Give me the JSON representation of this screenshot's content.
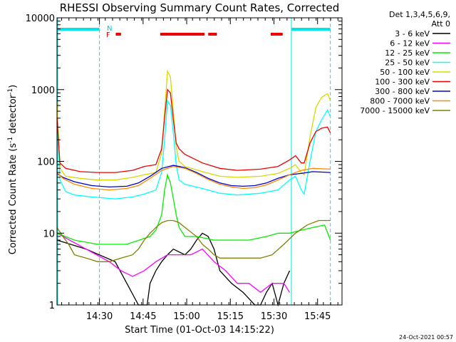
{
  "chart_data": {
    "type": "line",
    "title": "RHESSI Observing Summary Count Rates, Corrected",
    "xlabel": "Start Time (01-Oct-03 14:15:22)",
    "ylabel": "Corrected Count Rate (s",
    "ylabel_sup": "-1",
    "ylabel_mid": " detector",
    "ylabel_end": ")",
    "yscale": "log",
    "ylim": [
      1,
      10000
    ],
    "xlim": [
      0,
      98
    ],
    "ytick_values": [
      1,
      10,
      100,
      1000,
      10000
    ],
    "ytick_labels": [
      "1",
      "10",
      "100",
      "1000",
      "10000"
    ],
    "xtick_values": [
      14.6,
      29.6,
      44.6,
      59.6,
      74.6,
      89.6
    ],
    "xtick_labels": [
      "14:30",
      "14:45",
      "15:00",
      "15:15",
      "15:30",
      "15:45"
    ],
    "legend_header": [
      "Det 1,3,4,5,6,9,",
      "Att 0"
    ],
    "timestamp": "24-Oct-2021 00:57",
    "flag_N_label": "N",
    "flag_F_label": "F",
    "night_intervals": [
      [
        0,
        14.6
      ],
      [
        80.6,
        94.0
      ]
    ],
    "flare_intervals": [
      [
        20.2,
        22.0
      ],
      [
        35.5,
        50.7
      ],
      [
        52.0,
        55.0
      ],
      [
        73.5,
        77.6
      ]
    ],
    "background_color": "#ffffff",
    "series": [
      {
        "name": "3 - 6 keV",
        "color": "#000000",
        "x": [
          0,
          10,
          20,
          24,
          28,
          29,
          30,
          31,
          32,
          34,
          36,
          38,
          40,
          44,
          46,
          48,
          50,
          52,
          54,
          56,
          60,
          64,
          68,
          70,
          72,
          74,
          76,
          78,
          80
        ],
        "y": [
          8,
          6,
          4,
          2,
          1,
          1,
          1,
          1,
          2,
          3,
          4,
          5,
          6,
          5,
          6,
          8,
          10,
          9,
          6,
          3,
          2,
          1.5,
          1,
          1,
          1.5,
          2,
          1,
          2,
          3
        ]
      },
      {
        "name": "6 - 12 keV",
        "color": "#ff00ff",
        "x": [
          0,
          10,
          18,
          22,
          26,
          30,
          34,
          38,
          42,
          46,
          50,
          54,
          58,
          62,
          66,
          70,
          74,
          78,
          80
        ],
        "y": [
          10,
          6,
          4,
          3,
          2.5,
          3,
          4,
          5,
          5,
          5,
          6,
          4,
          3,
          2,
          2,
          1.5,
          2,
          2,
          1.5
        ]
      },
      {
        "name": "12 - 25 keV",
        "color": "#00ee00",
        "x": [
          0,
          6,
          14,
          24,
          32,
          34,
          36,
          37,
          38,
          39,
          40,
          41,
          42,
          44,
          48,
          54,
          60,
          66,
          72,
          76,
          80,
          84,
          88,
          92,
          94
        ],
        "y": [
          10,
          8,
          7,
          7,
          9,
          11,
          18,
          40,
          65,
          50,
          30,
          18,
          12,
          9,
          9,
          8,
          8,
          8,
          9,
          10,
          10,
          11,
          12,
          13,
          8
        ]
      },
      {
        "name": "25 - 50 keV",
        "color": "#00ffff",
        "x": [
          0,
          1,
          3,
          6,
          12,
          20,
          26,
          30,
          34,
          36,
          37,
          38,
          39,
          40,
          41,
          42,
          44,
          50,
          56,
          62,
          70,
          76,
          80,
          82,
          84,
          85,
          87,
          89,
          91,
          93,
          94
        ],
        "y": [
          600,
          55,
          38,
          34,
          32,
          30,
          32,
          35,
          40,
          70,
          200,
          700,
          600,
          250,
          90,
          55,
          48,
          42,
          36,
          34,
          36,
          40,
          55,
          62,
          40,
          35,
          100,
          260,
          380,
          520,
          420
        ]
      },
      {
        "name": "50 - 100 keV",
        "color": "#d8d800",
        "x": [
          0,
          1,
          3,
          8,
          14,
          20,
          26,
          30,
          34,
          36,
          37,
          38,
          39,
          40,
          41,
          42,
          44,
          50,
          56,
          62,
          70,
          76,
          80,
          82,
          84,
          85,
          87,
          89,
          91,
          93,
          94
        ],
        "y": [
          700,
          80,
          62,
          58,
          55,
          55,
          60,
          65,
          70,
          130,
          500,
          1800,
          1500,
          500,
          160,
          100,
          85,
          72,
          62,
          60,
          62,
          68,
          80,
          90,
          70,
          65,
          220,
          560,
          780,
          880,
          700
        ]
      },
      {
        "name": "100 - 300 keV",
        "color": "#ee0000",
        "x": [
          0,
          1,
          3,
          8,
          14,
          20,
          26,
          30,
          34,
          36,
          37,
          38,
          39,
          40,
          41,
          42,
          44,
          50,
          56,
          62,
          70,
          76,
          80,
          82,
          84,
          85,
          87,
          89,
          91,
          93,
          94
        ],
        "y": [
          400,
          95,
          80,
          72,
          70,
          70,
          75,
          85,
          90,
          150,
          400,
          1000,
          900,
          380,
          180,
          150,
          125,
          95,
          80,
          75,
          78,
          85,
          105,
          120,
          95,
          95,
          180,
          260,
          290,
          300,
          250
        ]
      },
      {
        "name": "300 - 800 keV",
        "color": "#0000cc",
        "x": [
          0,
          2,
          6,
          12,
          18,
          24,
          28,
          32,
          36,
          40,
          44,
          48,
          52,
          56,
          60,
          64,
          68,
          72,
          76,
          80,
          84,
          88,
          94
        ],
        "y": [
          68,
          60,
          52,
          46,
          44,
          45,
          50,
          62,
          80,
          88,
          82,
          70,
          58,
          50,
          46,
          45,
          46,
          50,
          58,
          65,
          68,
          72,
          70
        ]
      },
      {
        "name": "800 - 7000 keV",
        "color": "#ff8800",
        "x": [
          0,
          2,
          6,
          12,
          18,
          24,
          28,
          32,
          36,
          40,
          44,
          48,
          52,
          56,
          60,
          64,
          68,
          72,
          76,
          80,
          84,
          88,
          94
        ],
        "y": [
          70,
          58,
          48,
          42,
          40,
          42,
          46,
          58,
          75,
          85,
          80,
          68,
          56,
          48,
          44,
          42,
          43,
          47,
          55,
          65,
          75,
          80,
          78
        ]
      },
      {
        "name": "7000 - 15000 keV",
        "color": "#808000",
        "x": [
          0,
          2,
          4,
          6,
          10,
          14,
          18,
          22,
          26,
          28,
          30,
          32,
          34,
          36,
          38,
          40,
          42,
          44,
          48,
          50,
          52,
          54,
          56,
          58,
          62,
          66,
          70,
          74,
          78,
          82,
          86,
          90,
          94
        ],
        "y": [
          12,
          9,
          7,
          5,
          4.5,
          4,
          4,
          4.5,
          5,
          6,
          8,
          10,
          12,
          14,
          15,
          15,
          14,
          12,
          9,
          7,
          6,
          5,
          4.5,
          4.5,
          4.5,
          4.5,
          4.5,
          5,
          7,
          10,
          13,
          15,
          15
        ]
      }
    ]
  }
}
